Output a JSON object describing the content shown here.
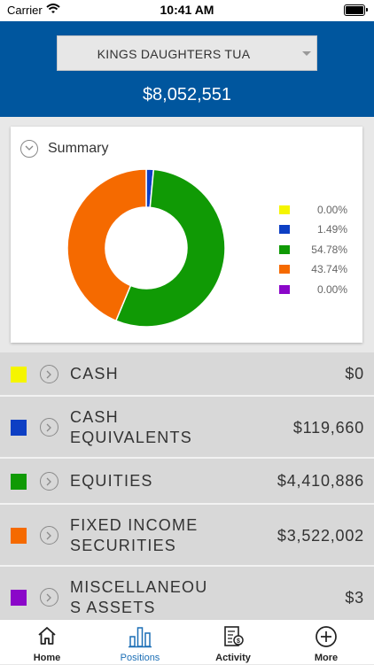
{
  "status_bar": {
    "carrier": "Carrier",
    "time": "10:41 AM"
  },
  "header": {
    "account_name": "KINGS DAUGHTERS TUA",
    "total_value": "$8,052,551"
  },
  "summary": {
    "title": "Summary",
    "legend": [
      {
        "percent": "0.00%",
        "color": "#f5f500"
      },
      {
        "percent": "1.49%",
        "color": "#0d3fc4"
      },
      {
        "percent": "54.78%",
        "color": "#109a05"
      },
      {
        "percent": "43.74%",
        "color": "#f56a00"
      },
      {
        "percent": "0.00%",
        "color": "#8b07c9"
      }
    ]
  },
  "chart_data": {
    "type": "pie",
    "categories": [
      "CASH",
      "CASH EQUIVALENTS",
      "EQUITIES",
      "FIXED INCOME SECURITIES",
      "MISCELLANEOUS ASSETS"
    ],
    "values": [
      0.0,
      1.49,
      54.78,
      43.74,
      0.0
    ],
    "colors": [
      "#f5f500",
      "#0d3fc4",
      "#109a05",
      "#f56a00",
      "#8b07c9"
    ],
    "title": "",
    "legend": "right"
  },
  "categories": [
    {
      "name": "CASH",
      "value": "$0",
      "color": "#f5f500"
    },
    {
      "name": "CASH\nEQUIVALENTS",
      "value": "$119,660",
      "color": "#0d3fc4"
    },
    {
      "name": "EQUITIES",
      "value": "$4,410,886",
      "color": "#109a05"
    },
    {
      "name": "FIXED INCOME\nSECURITIES",
      "value": "$3,522,002",
      "color": "#f56a00"
    },
    {
      "name": "MISCELLANEOU\nS ASSETS",
      "value": "$3",
      "color": "#8b07c9"
    }
  ],
  "tabs": [
    {
      "label": "Home",
      "icon": "home-icon"
    },
    {
      "label": "Positions",
      "icon": "bar-chart-icon",
      "active": true
    },
    {
      "label": "Activity",
      "icon": "statement-icon"
    },
    {
      "label": "More",
      "icon": "plus-circle-icon"
    }
  ]
}
